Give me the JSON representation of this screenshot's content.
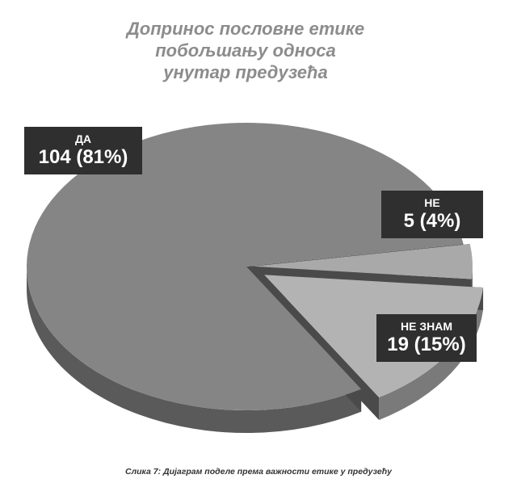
{
  "chart_data": {
    "type": "pie",
    "title_lines": [
      "Допринос пословне етике",
      "побољшању односа",
      "унутар предузећа"
    ],
    "slices": [
      {
        "label": "ДА",
        "value": 104,
        "percent": "81%",
        "value_text": "104 (81%)",
        "color": "#858585",
        "side_color": "#5a5a5a"
      },
      {
        "label": "НЕ",
        "value": 5,
        "percent": "4%",
        "value_text": "5 (4%)",
        "color": "#a9a9a9",
        "side_color": "#6f6f6f"
      },
      {
        "label": "НЕ ЗНАМ",
        "value": 19,
        "percent": "15%",
        "value_text": "19 (15%)",
        "color": "#b3b3b3",
        "side_color": "#7a7a7a"
      }
    ],
    "legend": "none",
    "style": "3d-exploded"
  },
  "caption": "Слика 7: Дијаграм поделе према важности етике у предузећу"
}
